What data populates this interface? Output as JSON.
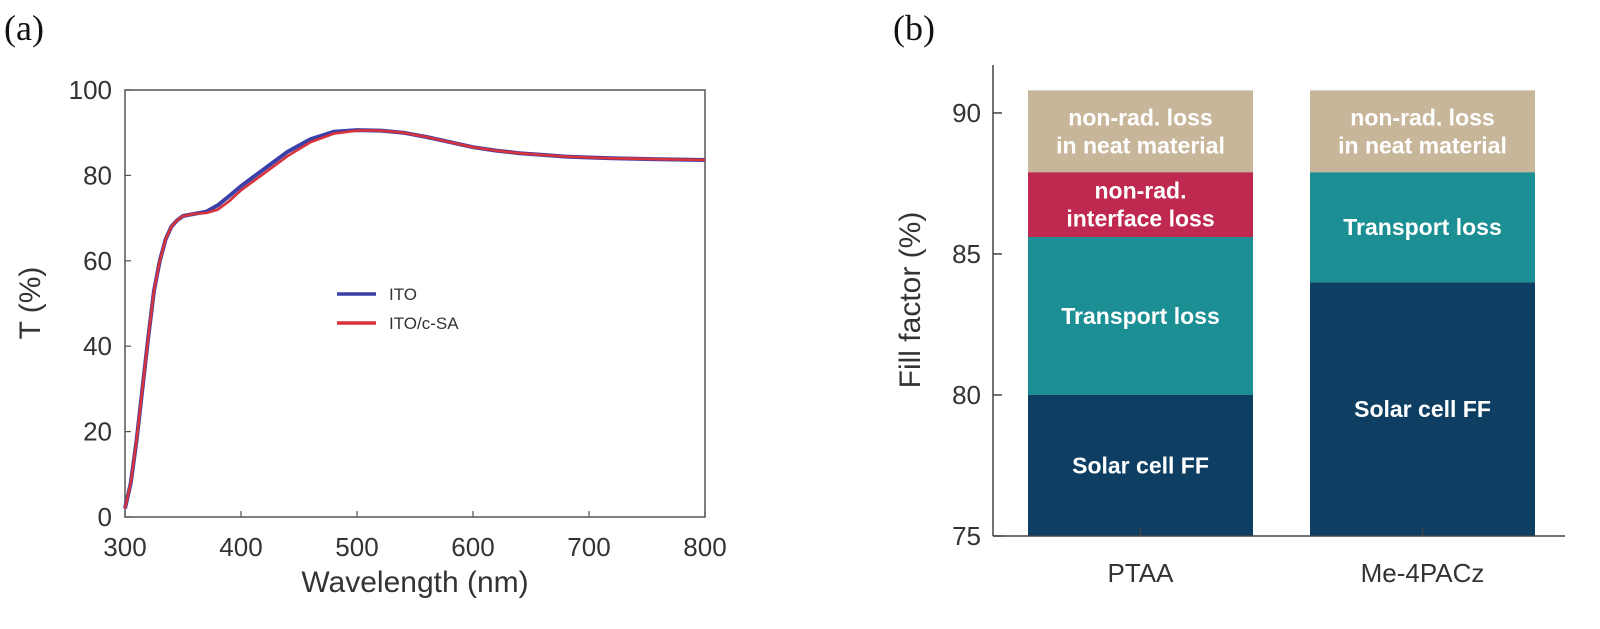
{
  "panels": {
    "a_label": "(a)",
    "b_label": "(b)"
  },
  "chart_data": [
    {
      "type": "line",
      "xlabel": "Wavelength (nm)",
      "ylabel": "T (%)",
      "xlim": [
        300,
        800
      ],
      "ylim": [
        0,
        100
      ],
      "xticks": [
        300,
        400,
        500,
        600,
        700,
        800
      ],
      "yticks": [
        0,
        20,
        40,
        60,
        80,
        100
      ],
      "legend_position": "center",
      "series": [
        {
          "name": "ITO",
          "color": "#3b3fa8",
          "x": [
            300,
            305,
            310,
            315,
            320,
            325,
            330,
            335,
            340,
            345,
            350,
            360,
            370,
            380,
            390,
            400,
            420,
            440,
            460,
            480,
            500,
            520,
            540,
            560,
            580,
            600,
            620,
            640,
            660,
            680,
            700,
            720,
            740,
            760,
            780,
            800
          ],
          "y": [
            2,
            8,
            18,
            30,
            42,
            53,
            60,
            65,
            68,
            69.5,
            70.5,
            71,
            71.5,
            73,
            75.2,
            77.5,
            81.5,
            85.5,
            88.5,
            90.2,
            90.6,
            90.5,
            90.0,
            89.0,
            87.8,
            86.6,
            85.8,
            85.2,
            84.8,
            84.4,
            84.2,
            84.0,
            83.9,
            83.8,
            83.7,
            83.6
          ]
        },
        {
          "name": "ITO/c-SA",
          "color": "#d8323a",
          "x": [
            300,
            305,
            310,
            315,
            320,
            325,
            330,
            335,
            340,
            345,
            350,
            360,
            370,
            380,
            390,
            400,
            420,
            440,
            460,
            480,
            500,
            520,
            540,
            560,
            580,
            600,
            620,
            640,
            660,
            680,
            700,
            720,
            740,
            760,
            780,
            800
          ],
          "y": [
            2,
            8,
            18,
            30,
            42,
            53,
            60,
            65,
            68,
            69.5,
            70.5,
            71,
            71.2,
            72,
            74,
            76.5,
            80.5,
            84.5,
            87.8,
            89.8,
            90.5,
            90.5,
            90.0,
            89.0,
            87.8,
            86.6,
            85.8,
            85.2,
            84.8,
            84.4,
            84.2,
            84.0,
            83.9,
            83.8,
            83.7,
            83.6
          ]
        }
      ]
    },
    {
      "type": "bar",
      "stacked": true,
      "ylabel": "Fill factor (%)",
      "ylim": [
        75,
        91.7
      ],
      "yticks": [
        75,
        80,
        85,
        90
      ],
      "categories": [
        "PTAA",
        "Me-4PACz"
      ],
      "bars": [
        {
          "category": "PTAA",
          "segments": [
            {
              "lines": [
                "Solar cell FF"
              ],
              "from": 75,
              "to": 80.0,
              "color": "#0e3f63"
            },
            {
              "lines": [
                "Transport loss"
              ],
              "from": 80.0,
              "to": 85.6,
              "color": "#1b8f93"
            },
            {
              "lines": [
                "non-rad.",
                "interface loss"
              ],
              "from": 85.6,
              "to": 87.9,
              "color": "#c0294f"
            },
            {
              "lines": [
                "non-rad. loss",
                "in neat material"
              ],
              "from": 87.9,
              "to": 90.8,
              "color": "#c8b69a"
            }
          ]
        },
        {
          "category": "Me-4PACz",
          "segments": [
            {
              "lines": [
                "Solar cell FF"
              ],
              "from": 75,
              "to": 84.0,
              "color": "#0e3f63"
            },
            {
              "lines": [
                "Transport loss"
              ],
              "from": 84.0,
              "to": 87.9,
              "color": "#1b8f93"
            },
            {
              "lines": [
                "non-rad. loss",
                "in neat material"
              ],
              "from": 87.9,
              "to": 90.8,
              "color": "#c8b69a"
            }
          ]
        }
      ]
    }
  ]
}
